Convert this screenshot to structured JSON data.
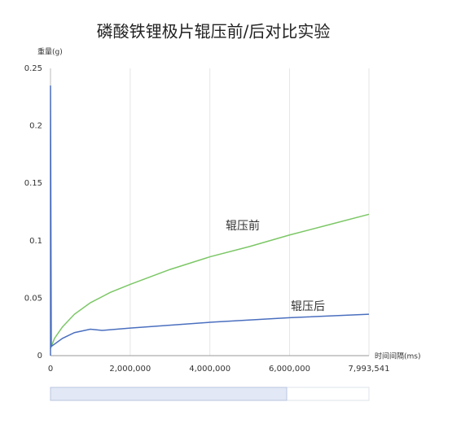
{
  "chart_data": {
    "type": "line",
    "title": "磷酸铁锂极片辊压前/后对比实验",
    "y_label": "重量(g)",
    "x_label": "时间间隔(ms)",
    "xlim": [
      0,
      7993541
    ],
    "xticks": [
      0,
      {
        "value": 2000000,
        "label": "2,000,000"
      },
      {
        "value": 4000000,
        "label": "4,000,000"
      },
      {
        "value": 6000000,
        "label": "6,000,000"
      },
      {
        "value": 7993541,
        "label": "7,993,541"
      }
    ],
    "ylim": [
      0,
      0.25
    ],
    "yticks": [
      0,
      0.05,
      0.1,
      0.15,
      0.2,
      0.25
    ],
    "grid": "x",
    "series": [
      {
        "name": "辊压前",
        "color": "#7cc766",
        "x": [
          0,
          100000,
          300000,
          600000,
          1000000,
          1500000,
          2000000,
          3000000,
          4000000,
          5000000,
          6000000,
          7000000,
          7993541
        ],
        "values": [
          0.006,
          0.015,
          0.025,
          0.036,
          0.046,
          0.055,
          0.062,
          0.075,
          0.086,
          0.095,
          0.105,
          0.114,
          0.123
        ]
      },
      {
        "name": "辊压后",
        "color": "#4a6fbf",
        "x": [
          0,
          0,
          20000,
          300000,
          600000,
          1000000,
          1300000,
          2000000,
          4000000,
          6000000,
          7993541
        ],
        "values": [
          0,
          0.235,
          0.008,
          0.015,
          0.02,
          0.023,
          0.022,
          0.024,
          0.029,
          0.033,
          0.036
        ]
      }
    ]
  }
}
